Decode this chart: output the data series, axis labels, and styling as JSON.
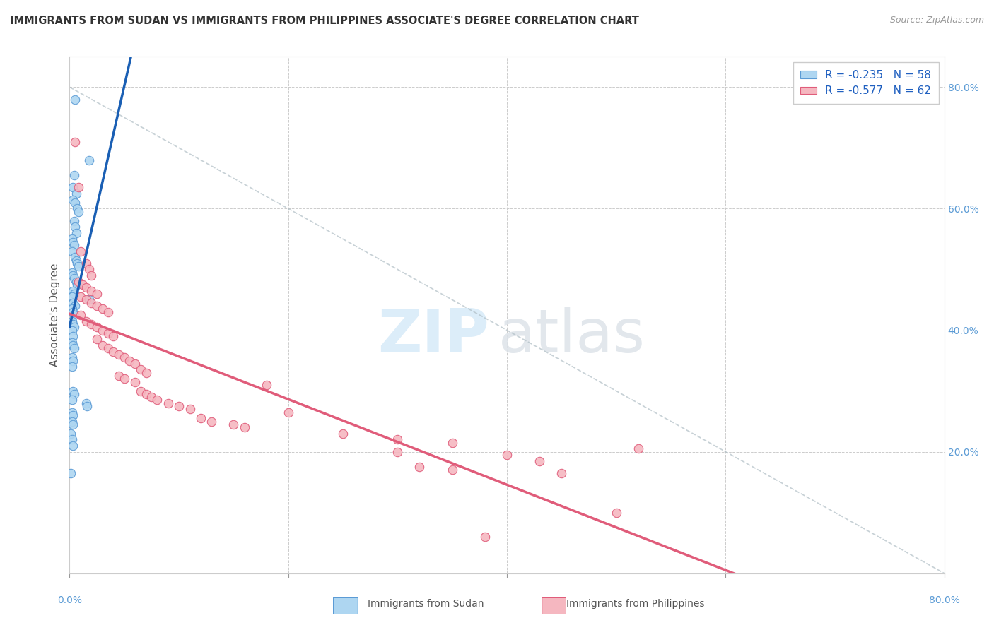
{
  "title": "IMMIGRANTS FROM SUDAN VS IMMIGRANTS FROM PHILIPPINES ASSOCIATE'S DEGREE CORRELATION CHART",
  "source": "Source: ZipAtlas.com",
  "ylabel": "Associate's Degree",
  "sudan_color": "#aed6f1",
  "sudan_edge": "#5b9bd5",
  "philippines_color": "#f5b7c0",
  "philippines_edge": "#e05c7a",
  "sudan_line_color": "#1a5fb4",
  "philippines_line_color": "#e05c7a",
  "diagonal_color": "#b0bec5",
  "watermark_zip_color": "#d6eaf8",
  "watermark_atlas_color": "#d5d8dc",
  "right_tick_color": "#5b9bd5",
  "sudan_points": [
    [
      0.005,
      0.78
    ],
    [
      0.018,
      0.68
    ],
    [
      0.004,
      0.655
    ],
    [
      0.003,
      0.635
    ],
    [
      0.006,
      0.625
    ],
    [
      0.003,
      0.615
    ],
    [
      0.005,
      0.61
    ],
    [
      0.007,
      0.6
    ],
    [
      0.008,
      0.595
    ],
    [
      0.004,
      0.58
    ],
    [
      0.005,
      0.57
    ],
    [
      0.006,
      0.56
    ],
    [
      0.002,
      0.55
    ],
    [
      0.003,
      0.545
    ],
    [
      0.004,
      0.54
    ],
    [
      0.002,
      0.53
    ],
    [
      0.005,
      0.52
    ],
    [
      0.006,
      0.515
    ],
    [
      0.007,
      0.51
    ],
    [
      0.008,
      0.505
    ],
    [
      0.002,
      0.495
    ],
    [
      0.003,
      0.49
    ],
    [
      0.004,
      0.485
    ],
    [
      0.006,
      0.48
    ],
    [
      0.007,
      0.475
    ],
    [
      0.003,
      0.465
    ],
    [
      0.004,
      0.46
    ],
    [
      0.002,
      0.455
    ],
    [
      0.018,
      0.45
    ],
    [
      0.003,
      0.445
    ],
    [
      0.005,
      0.44
    ],
    [
      0.002,
      0.435
    ],
    [
      0.003,
      0.43
    ],
    [
      0.004,
      0.425
    ],
    [
      0.002,
      0.415
    ],
    [
      0.003,
      0.41
    ],
    [
      0.004,
      0.405
    ],
    [
      0.002,
      0.4
    ],
    [
      0.003,
      0.39
    ],
    [
      0.002,
      0.38
    ],
    [
      0.003,
      0.375
    ],
    [
      0.004,
      0.37
    ],
    [
      0.002,
      0.355
    ],
    [
      0.003,
      0.35
    ],
    [
      0.002,
      0.34
    ],
    [
      0.003,
      0.3
    ],
    [
      0.004,
      0.295
    ],
    [
      0.002,
      0.285
    ],
    [
      0.015,
      0.28
    ],
    [
      0.016,
      0.275
    ],
    [
      0.002,
      0.265
    ],
    [
      0.003,
      0.26
    ],
    [
      0.002,
      0.25
    ],
    [
      0.003,
      0.245
    ],
    [
      0.001,
      0.23
    ],
    [
      0.002,
      0.22
    ],
    [
      0.003,
      0.21
    ],
    [
      0.001,
      0.165
    ]
  ],
  "philippines_points": [
    [
      0.005,
      0.71
    ],
    [
      0.008,
      0.635
    ],
    [
      0.01,
      0.53
    ],
    [
      0.015,
      0.51
    ],
    [
      0.018,
      0.5
    ],
    [
      0.02,
      0.49
    ],
    [
      0.008,
      0.48
    ],
    [
      0.012,
      0.475
    ],
    [
      0.015,
      0.47
    ],
    [
      0.02,
      0.465
    ],
    [
      0.025,
      0.46
    ],
    [
      0.01,
      0.455
    ],
    [
      0.015,
      0.45
    ],
    [
      0.02,
      0.445
    ],
    [
      0.025,
      0.44
    ],
    [
      0.03,
      0.435
    ],
    [
      0.035,
      0.43
    ],
    [
      0.01,
      0.425
    ],
    [
      0.015,
      0.415
    ],
    [
      0.02,
      0.41
    ],
    [
      0.025,
      0.405
    ],
    [
      0.03,
      0.4
    ],
    [
      0.035,
      0.395
    ],
    [
      0.04,
      0.39
    ],
    [
      0.025,
      0.385
    ],
    [
      0.03,
      0.375
    ],
    [
      0.035,
      0.37
    ],
    [
      0.04,
      0.365
    ],
    [
      0.045,
      0.36
    ],
    [
      0.05,
      0.355
    ],
    [
      0.055,
      0.35
    ],
    [
      0.06,
      0.345
    ],
    [
      0.065,
      0.335
    ],
    [
      0.07,
      0.33
    ],
    [
      0.045,
      0.325
    ],
    [
      0.05,
      0.32
    ],
    [
      0.06,
      0.315
    ],
    [
      0.18,
      0.31
    ],
    [
      0.065,
      0.3
    ],
    [
      0.07,
      0.295
    ],
    [
      0.075,
      0.29
    ],
    [
      0.08,
      0.285
    ],
    [
      0.09,
      0.28
    ],
    [
      0.1,
      0.275
    ],
    [
      0.11,
      0.27
    ],
    [
      0.2,
      0.265
    ],
    [
      0.12,
      0.255
    ],
    [
      0.13,
      0.25
    ],
    [
      0.15,
      0.245
    ],
    [
      0.16,
      0.24
    ],
    [
      0.25,
      0.23
    ],
    [
      0.3,
      0.22
    ],
    [
      0.35,
      0.215
    ],
    [
      0.3,
      0.2
    ],
    [
      0.4,
      0.195
    ],
    [
      0.32,
      0.175
    ],
    [
      0.43,
      0.185
    ],
    [
      0.35,
      0.17
    ],
    [
      0.45,
      0.165
    ],
    [
      0.5,
      0.1
    ],
    [
      0.52,
      0.205
    ],
    [
      0.38,
      0.06
    ]
  ],
  "xlim": [
    0.0,
    0.8
  ],
  "ylim": [
    0.0,
    0.85
  ],
  "sudan_line_x": [
    0.0,
    0.16
  ],
  "philippines_line_x": [
    0.0,
    0.8
  ],
  "diagonal_line": [
    [
      0.0,
      0.8
    ],
    [
      0.8,
      0.0
    ]
  ]
}
